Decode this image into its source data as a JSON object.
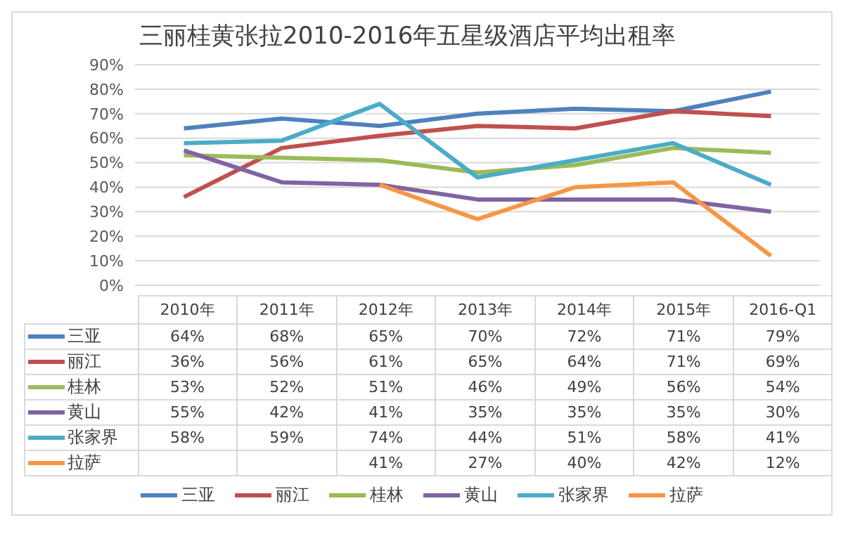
{
  "chart_data": {
    "type": "line",
    "title": "三丽桂黄张拉2010-2016年五星级酒店平均出租率",
    "categories": [
      "2010年",
      "2011年",
      "2012年",
      "2013年",
      "2014年",
      "2015年",
      "2016-Q1"
    ],
    "series": [
      {
        "name": "三亚",
        "color": "#4f81bd",
        "values": [
          64,
          68,
          65,
          70,
          72,
          71,
          79
        ],
        "value_labels": [
          "64%",
          "68%",
          "65%",
          "70%",
          "72%",
          "71%",
          "79%"
        ]
      },
      {
        "name": "丽江",
        "color": "#c0504d",
        "values": [
          36,
          56,
          61,
          65,
          64,
          71,
          69
        ],
        "value_labels": [
          "36%",
          "56%",
          "61%",
          "65%",
          "64%",
          "71%",
          "69%"
        ]
      },
      {
        "name": "桂林",
        "color": "#9bbb59",
        "values": [
          53,
          52,
          51,
          46,
          49,
          56,
          54
        ],
        "value_labels": [
          "53%",
          "52%",
          "51%",
          "46%",
          "49%",
          "56%",
          "54%"
        ]
      },
      {
        "name": "黄山",
        "color": "#8064a2",
        "values": [
          55,
          42,
          41,
          35,
          35,
          35,
          30
        ],
        "value_labels": [
          "55%",
          "42%",
          "41%",
          "35%",
          "35%",
          "35%",
          "30%"
        ]
      },
      {
        "name": "张家界",
        "color": "#4bacc6",
        "values": [
          58,
          59,
          74,
          44,
          51,
          58,
          41
        ],
        "value_labels": [
          "58%",
          "59%",
          "74%",
          "44%",
          "51%",
          "58%",
          "41%"
        ]
      },
      {
        "name": "拉萨",
        "color": "#f79646",
        "values": [
          null,
          null,
          41,
          27,
          40,
          42,
          12
        ],
        "value_labels": [
          null,
          null,
          "41%",
          "27%",
          "40%",
          "42%",
          "12%"
        ]
      }
    ],
    "ylim": [
      0,
      90
    ],
    "yticks": [
      {
        "value": 0,
        "label": "0%"
      },
      {
        "value": 10,
        "label": "10%"
      },
      {
        "value": 20,
        "label": "20%"
      },
      {
        "value": 30,
        "label": "30%"
      },
      {
        "value": 40,
        "label": "40%"
      },
      {
        "value": 50,
        "label": "50%"
      },
      {
        "value": 60,
        "label": "60%"
      },
      {
        "value": 70,
        "label": "70%"
      },
      {
        "value": 80,
        "label": "80%"
      },
      {
        "value": 90,
        "label": "90%"
      }
    ],
    "grid": "y",
    "legend": "bottom",
    "marker": "none",
    "line_style": "solid"
  }
}
